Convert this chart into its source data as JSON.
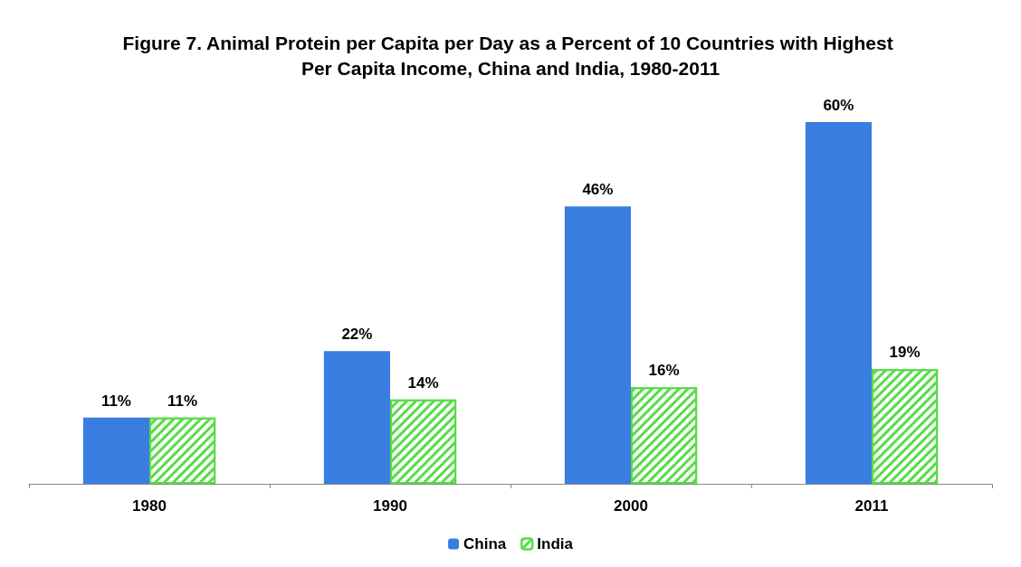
{
  "chart_data": {
    "type": "bar",
    "title": "Figure 7. Animal Protein per Capita per Day as a Percent of 10 Countries with Highest Per Capita Income, China and India, 1980-2011",
    "categories": [
      "1980",
      "1990",
      "2000",
      "2011"
    ],
    "series": [
      {
        "name": "China",
        "color": "#3a7de0",
        "values": [
          11,
          22,
          46,
          60
        ],
        "value_labels": [
          "11%",
          "22%",
          "46%",
          "60%"
        ]
      },
      {
        "name": "India",
        "color": "#55dd44",
        "values": [
          11,
          14,
          16,
          19
        ],
        "value_labels": [
          "11%",
          "14%",
          "16%",
          "19%"
        ]
      }
    ],
    "legend": "bottom",
    "grid": false
  }
}
